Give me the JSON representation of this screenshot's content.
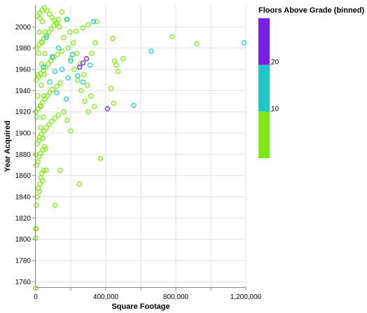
{
  "chart_data": {
    "type": "scatter",
    "xlabel": "Square Footage",
    "ylabel": "Year Acquired",
    "xlim": [
      0,
      1200000
    ],
    "ylim": [
      1755,
      2020
    ],
    "x_ticks": [
      0,
      400000,
      800000,
      1200000
    ],
    "x_tick_labels": [
      "0",
      "400,000",
      "800,000",
      "1,200,000"
    ],
    "y_ticks": [
      1760,
      1780,
      1800,
      1820,
      1840,
      1860,
      1880,
      1900,
      1920,
      1940,
      1960,
      1980,
      2000
    ],
    "y_tick_labels": [
      "1760",
      "1780",
      "1800",
      "1820",
      "1840",
      "1860",
      "1880",
      "1900",
      "1920",
      "1940",
      "1960",
      "1980",
      "2000"
    ],
    "grid": true,
    "marker": "open-circle",
    "legend": {
      "title": "Floors Above Grade (binned)",
      "placement": "right",
      "bins": [
        {
          "range": [
            0,
            10
          ],
          "color": "#7fea14"
        },
        {
          "range": [
            10,
            20
          ],
          "color": "#1ec8c8"
        },
        {
          "range": [
            20,
            30
          ],
          "color": "#7b1fe8"
        }
      ],
      "tick_labels": [
        "10",
        "20"
      ]
    },
    "series": [
      {
        "bin": "0-10",
        "color": "#7fea14",
        "points": [
          [
            0,
            1754
          ],
          [
            0,
            1801
          ],
          [
            0,
            1810
          ],
          [
            3000,
            1810
          ],
          [
            5000,
            1832
          ],
          [
            20000,
            1845
          ],
          [
            40000,
            1855
          ],
          [
            60000,
            1865
          ],
          [
            45000,
            1865
          ],
          [
            10000,
            1840
          ],
          [
            15000,
            1848
          ],
          [
            25000,
            1852
          ],
          [
            30000,
            1858
          ],
          [
            35000,
            1862
          ],
          [
            5000,
            1870
          ],
          [
            12000,
            1873
          ],
          [
            20000,
            1878
          ],
          [
            28000,
            1881
          ],
          [
            40000,
            1884
          ],
          [
            50000,
            1887
          ],
          [
            8000,
            1890
          ],
          [
            18000,
            1893
          ],
          [
            22000,
            1896
          ],
          [
            32000,
            1899
          ],
          [
            48000,
            1902
          ],
          [
            60000,
            1905
          ],
          [
            75000,
            1908
          ],
          [
            90000,
            1911
          ],
          [
            110000,
            1914
          ],
          [
            130000,
            1917
          ],
          [
            2000,
            1920
          ],
          [
            14000,
            1923
          ],
          [
            26000,
            1926
          ],
          [
            38000,
            1929
          ],
          [
            52000,
            1932
          ],
          [
            66000,
            1935
          ],
          [
            80000,
            1938
          ],
          [
            95000,
            1941
          ],
          [
            120000,
            1944
          ],
          [
            140000,
            1947
          ],
          [
            4000,
            1950
          ],
          [
            16000,
            1953
          ],
          [
            30000,
            1956
          ],
          [
            44000,
            1959
          ],
          [
            58000,
            1962
          ],
          [
            72000,
            1965
          ],
          [
            86000,
            1968
          ],
          [
            100000,
            1971
          ],
          [
            125000,
            1974
          ],
          [
            150000,
            1977
          ],
          [
            6000,
            1980
          ],
          [
            19000,
            1983
          ],
          [
            33000,
            1986
          ],
          [
            47000,
            1989
          ],
          [
            61000,
            1992
          ],
          [
            75000,
            1995
          ],
          [
            89000,
            1998
          ],
          [
            103000,
            2001
          ],
          [
            117000,
            2004
          ],
          [
            131000,
            2007
          ],
          [
            9000,
            2010
          ],
          [
            23000,
            2013
          ],
          [
            37000,
            2016
          ],
          [
            51000,
            2018
          ],
          [
            65000,
            2015
          ],
          [
            79000,
            2012
          ],
          [
            93000,
            2009
          ],
          [
            107000,
            2006
          ],
          [
            121000,
            2003
          ],
          [
            135000,
            2000
          ],
          [
            160000,
            1990
          ],
          [
            185000,
            1980
          ],
          [
            200000,
            1970
          ],
          [
            220000,
            1960
          ],
          [
            240000,
            1950
          ],
          [
            260000,
            1940
          ],
          [
            280000,
            1930
          ],
          [
            300000,
            1920
          ],
          [
            320000,
            1975
          ],
          [
            340000,
            1985
          ],
          [
            150000,
            2014
          ],
          [
            175000,
            2007
          ],
          [
            195000,
            1995
          ],
          [
            215000,
            1985
          ],
          [
            235000,
            1975
          ],
          [
            255000,
            1965
          ],
          [
            275000,
            1955
          ],
          [
            295000,
            1945
          ],
          [
            315000,
            1935
          ],
          [
            335000,
            1925
          ],
          [
            440000,
            1989
          ],
          [
            450000,
            1968
          ],
          [
            460000,
            1964
          ],
          [
            470000,
            1958
          ],
          [
            500000,
            1970
          ],
          [
            430000,
            1942
          ],
          [
            445000,
            1928
          ],
          [
            370000,
            1876
          ],
          [
            250000,
            1852
          ],
          [
            140000,
            1865
          ],
          [
            200000,
            1902
          ],
          [
            180000,
            1912
          ],
          [
            160000,
            1920
          ],
          [
            110000,
            1832
          ],
          [
            780000,
            1991
          ],
          [
            920000,
            1984
          ],
          [
            350000,
            2005
          ],
          [
            300000,
            2002
          ],
          [
            270000,
            1999
          ],
          [
            230000,
            1996
          ],
          [
            1000,
            1880
          ],
          [
            7000,
            1915
          ],
          [
            11000,
            1935
          ],
          [
            13000,
            1955
          ],
          [
            17000,
            1975
          ],
          [
            21000,
            1995
          ],
          [
            24000,
            2008
          ],
          [
            27000,
            1905
          ],
          [
            29000,
            1925
          ],
          [
            31000,
            1945
          ],
          [
            34000,
            1965
          ],
          [
            36000,
            1985
          ],
          [
            39000,
            2005
          ],
          [
            41000,
            1895
          ],
          [
            43000,
            1915
          ],
          [
            46000,
            1935
          ],
          [
            49000,
            1955
          ],
          [
            53000,
            1975
          ],
          [
            55000,
            1995
          ],
          [
            57000,
            1885
          ]
        ]
      },
      {
        "bin": "10-20",
        "color": "#1ec8c8",
        "points": [
          [
            45000,
            1962
          ],
          [
            80000,
            1948
          ],
          [
            110000,
            1958
          ],
          [
            150000,
            1960
          ],
          [
            175000,
            1932
          ],
          [
            185000,
            1952
          ],
          [
            200000,
            1968
          ],
          [
            240000,
            1954
          ],
          [
            270000,
            1948
          ],
          [
            310000,
            1964
          ],
          [
            330000,
            2005
          ],
          [
            560000,
            1926
          ],
          [
            660000,
            1977
          ],
          [
            1190000,
            1985
          ],
          [
            120000,
            1938
          ],
          [
            60000,
            1990
          ],
          [
            95000,
            1972
          ],
          [
            130000,
            1980
          ],
          [
            210000,
            1974
          ],
          [
            180000,
            2007
          ]
        ]
      },
      {
        "bin": "20-30",
        "color": "#7b1fe8",
        "points": [
          [
            410000,
            1923
          ],
          [
            270000,
            1966
          ],
          [
            290000,
            1970
          ],
          [
            250000,
            1962
          ]
        ]
      }
    ]
  }
}
